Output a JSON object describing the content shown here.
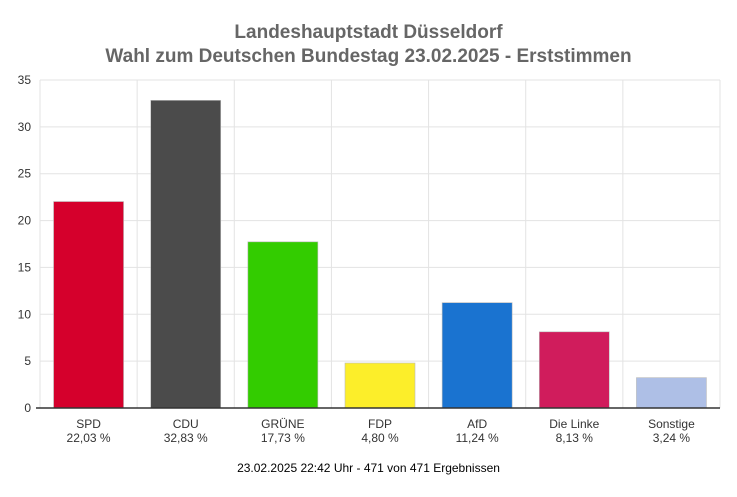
{
  "chart_data": {
    "type": "bar",
    "title": "Landeshauptstadt Düsseldorf",
    "subtitle": "Wahl zum Deutschen Bundestag 23.02.2025  - Erststimmen",
    "categories": [
      "SPD",
      "CDU",
      "GRÜNE",
      "FDP",
      "AfD",
      "Die Linke",
      "Sonstige"
    ],
    "values": [
      22.03,
      32.83,
      17.73,
      4.8,
      11.24,
      8.13,
      3.24
    ],
    "value_labels": [
      "22,03 %",
      "32,83 %",
      "17,73 %",
      "4,80 %",
      "11,24 %",
      "8,13 %",
      "3,24 %"
    ],
    "colors": [
      "#d5002c",
      "#4b4b4b",
      "#33cc00",
      "#fcee2a",
      "#1a73d0",
      "#d01c5c",
      "#aebfe6"
    ],
    "yticks": [
      "0",
      "5",
      "10",
      "15",
      "20",
      "25",
      "30",
      "35"
    ],
    "ylim": [
      0,
      35
    ],
    "grid": true,
    "xlabel": "",
    "ylabel": ""
  },
  "footer": "23.02.2025 22:42 Uhr - 471 von 471 Ergebnissen"
}
